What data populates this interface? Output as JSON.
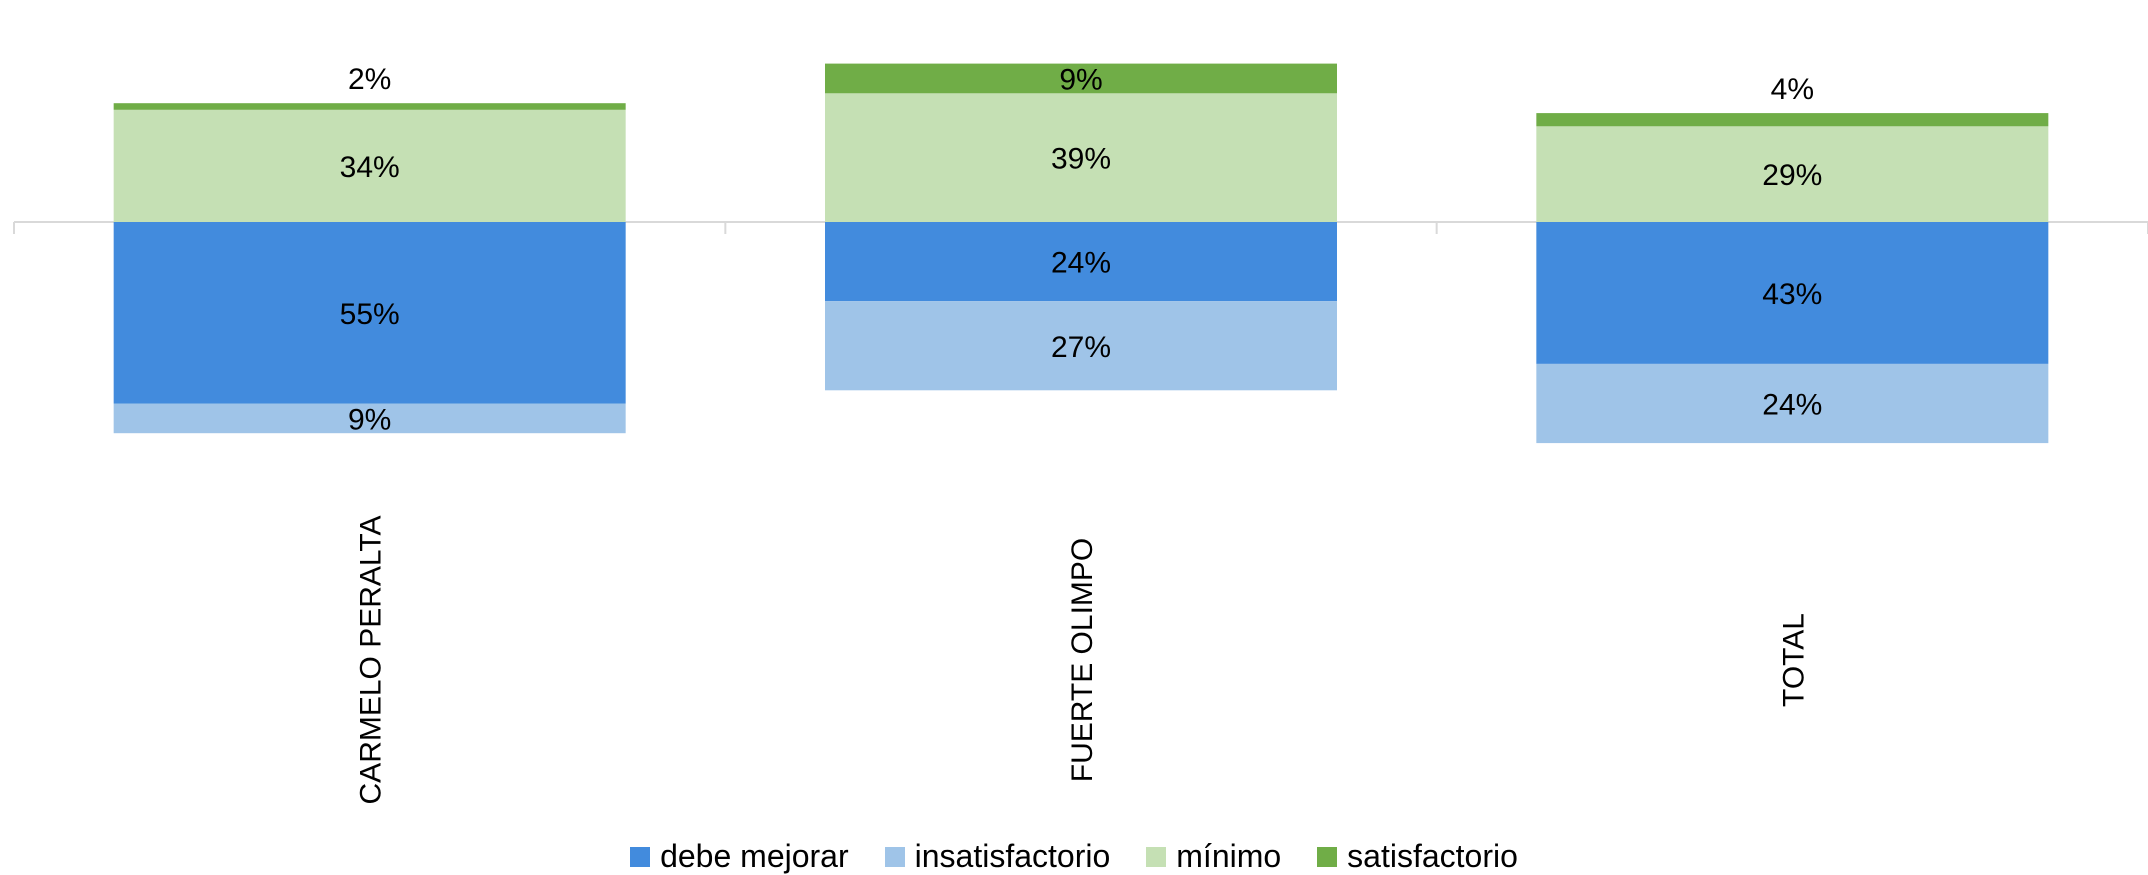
{
  "chart_data": {
    "type": "bar",
    "stacking": "diverging",
    "categories": [
      "CARMELO PERALTA",
      "FUERTE OLIMPO",
      "TOTAL"
    ],
    "series": [
      {
        "name": "debe mejorar",
        "color": "#428BDD",
        "direction": "below",
        "values": [
          55,
          24,
          43
        ],
        "labels": [
          "55%",
          "24%",
          "43%"
        ]
      },
      {
        "name": "insatisfactorio",
        "color": "#9FC4E8",
        "direction": "below",
        "values": [
          9,
          27,
          24
        ],
        "labels": [
          "9%",
          "27%",
          "24%"
        ]
      },
      {
        "name": "mínimo",
        "color": "#C5E0B4",
        "direction": "above",
        "values": [
          34,
          39,
          29
        ],
        "labels": [
          "34%",
          "39%",
          "29%"
        ]
      },
      {
        "name": "satisfactorio",
        "color": "#70AD47",
        "direction": "above",
        "values": [
          2,
          9,
          4
        ],
        "labels": [
          "2%",
          "9%",
          "4%"
        ]
      }
    ],
    "legend_position": "bottom",
    "grid": false
  }
}
